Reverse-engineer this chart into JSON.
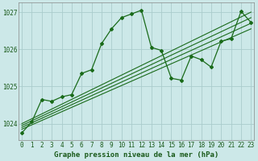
{
  "background_color": "#cce8e8",
  "grid_color": "#aacccc",
  "line_color": "#1a6b1a",
  "title": "Graphe pression niveau de la mer (hPa)",
  "xlim": [
    -0.3,
    23.3
  ],
  "ylim": [
    1023.55,
    1027.25
  ],
  "yticks": [
    1024,
    1025,
    1026,
    1027
  ],
  "xticks": [
    0,
    1,
    2,
    3,
    4,
    5,
    6,
    7,
    8,
    9,
    10,
    11,
    12,
    13,
    14,
    15,
    16,
    17,
    18,
    19,
    20,
    21,
    22,
    23
  ],
  "trend_lines": [
    {
      "x0": 0,
      "y0": 1023.85,
      "x1": 23,
      "y1": 1026.55
    },
    {
      "x0": 0,
      "y0": 1023.9,
      "x1": 23,
      "y1": 1026.7
    },
    {
      "x0": 0,
      "y0": 1023.95,
      "x1": 23,
      "y1": 1026.85
    },
    {
      "x0": 0,
      "y0": 1024.0,
      "x1": 23,
      "y1": 1027.0
    }
  ],
  "main_x": [
    0,
    1,
    2,
    3,
    4,
    5,
    6,
    7,
    8,
    9,
    10,
    11,
    12,
    13,
    14,
    15,
    16,
    17,
    18,
    19,
    20,
    21,
    22,
    23
  ],
  "main_y": [
    1023.75,
    1024.05,
    1024.65,
    1024.6,
    1024.72,
    1024.78,
    1025.35,
    1025.45,
    1026.15,
    1026.55,
    1026.85,
    1026.95,
    1027.05,
    1026.05,
    1025.97,
    1025.22,
    1025.17,
    1025.82,
    1025.72,
    1025.52,
    1026.22,
    1026.28,
    1027.02,
    1026.72
  ],
  "tick_fontsize": 5.5,
  "xlabel_fontsize": 6.5,
  "tick_color": "#1a5a1a",
  "xlabel_color": "#1a5a1a"
}
